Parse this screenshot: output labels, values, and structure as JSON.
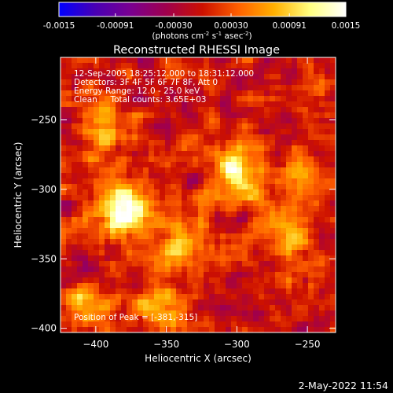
{
  "colorbar": {
    "ticks": [
      "-0.0015",
      "-0.00091",
      "-0.00030",
      "0.00030",
      "0.00091",
      "0.0015"
    ],
    "unit_label": "(photons cm",
    "unit_exp1": "-2",
    "unit_mid": " s",
    "unit_exp2": "-1",
    "unit_tail": " asec",
    "unit_exp3": "-2",
    "unit_close": ")"
  },
  "chart_data": {
    "type": "heatmap",
    "title": "Reconstructed RHESSI Image",
    "xlabel": "Heliocentric X (arcsec)",
    "ylabel": "Heliocentric Y (arcsec)",
    "xlim": [
      -425,
      -230
    ],
    "ylim": [
      -403,
      -205
    ],
    "xticks": [
      -400,
      -350,
      -300,
      -250
    ],
    "yticks": [
      -400,
      -350,
      -300,
      -250
    ],
    "zlim": [
      -0.0015,
      0.0015
    ],
    "colormap": [
      "#0000ff",
      "#4800b4",
      "#7a0090",
      "#a0004c",
      "#cc1000",
      "#ff6000",
      "#ffb000",
      "#ffff80",
      "#ffffff"
    ],
    "sources": [
      {
        "x": -381,
        "y": -315,
        "amp": 0.0015
      },
      {
        "x": -300,
        "y": -288,
        "amp": 0.00125
      },
      {
        "x": -392,
        "y": -255,
        "amp": 0.0008
      },
      {
        "x": -340,
        "y": -338,
        "amp": 0.0009
      },
      {
        "x": -264,
        "y": -332,
        "amp": 0.0007
      },
      {
        "x": -250,
        "y": -290,
        "amp": 0.0006
      },
      {
        "x": -353,
        "y": -385,
        "amp": 0.0007
      },
      {
        "x": -405,
        "y": -383,
        "amp": 0.0006
      }
    ],
    "info": [
      "12-Sep-2005 18:25:12.000 to 18:31:12.000",
      "Detectors: 3F 4F 5F 6F 7F 8F, Att 0",
      "Energy Range: 12.0 - 25.0 keV",
      "Clean     Total counts: 3.65E+03"
    ],
    "peak_label": "Position of Peak = [-381,-315]"
  },
  "footer": {
    "timestamp": "2-May-2022 11:54"
  }
}
